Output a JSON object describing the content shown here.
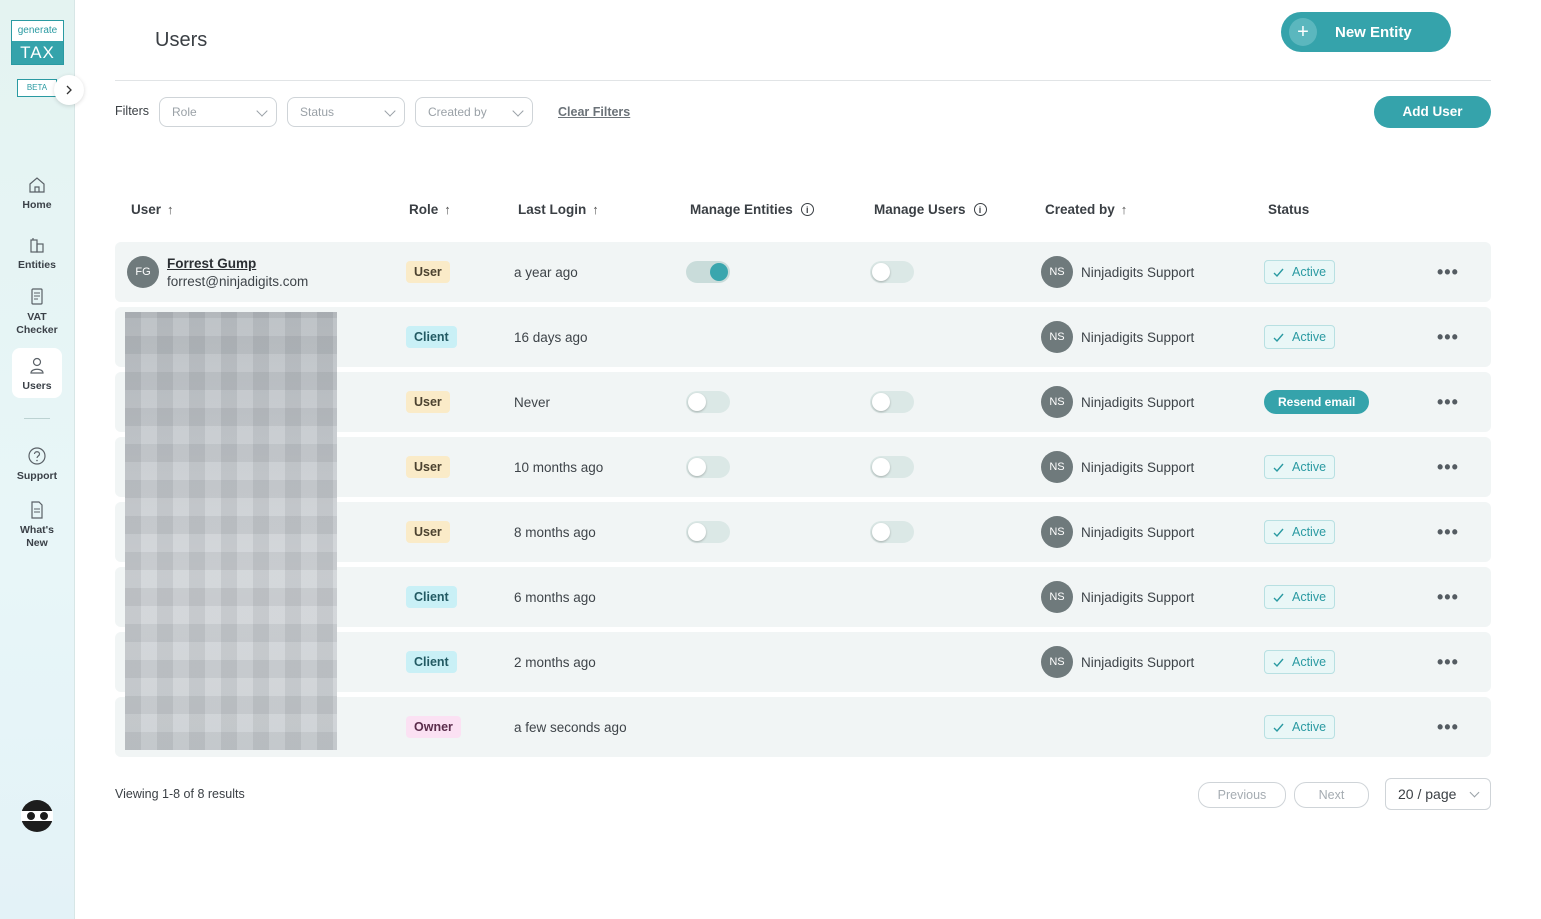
{
  "brand": {
    "logo_top": "generate",
    "logo_bottom": "TAX",
    "beta": "BETA"
  },
  "sidebar": {
    "items": [
      {
        "label": "Home",
        "icon": "home-icon"
      },
      {
        "label": "Entities",
        "icon": "buildings-icon"
      },
      {
        "label": "VAT Checker",
        "icon": "document-icon"
      },
      {
        "label": "Users",
        "icon": "user-icon"
      },
      {
        "label": "Support",
        "icon": "help-icon"
      },
      {
        "label": "What's New",
        "icon": "news-icon"
      }
    ]
  },
  "header": {
    "title": "Users",
    "new_entity_label": "New Entity"
  },
  "filters": {
    "label": "Filters",
    "role_placeholder": "Role",
    "status_placeholder": "Status",
    "created_by_placeholder": "Created by",
    "clear_label": "Clear Filters",
    "add_user_label": "Add User"
  },
  "table": {
    "columns": [
      "User",
      "Role",
      "Last Login",
      "Manage Entities",
      "Manage Users",
      "Created by",
      "Status"
    ],
    "rows": [
      {
        "initials": "FG",
        "name": "Forrest Gump",
        "email": "forrest@ninjadigits.com",
        "role": "User",
        "role_type": "user",
        "last_login": "a year ago",
        "manage_entities": true,
        "manage_users": false,
        "toggles": true,
        "creator_initials": "NS",
        "created_by": "Ninjadigits Support",
        "status": "Active",
        "status_type": "active"
      },
      {
        "initials": "",
        "name": "",
        "email": "",
        "role": "Client",
        "role_type": "client",
        "last_login": "16 days ago",
        "toggles": false,
        "creator_initials": "NS",
        "created_by": "Ninjadigits Support",
        "status": "Active",
        "status_type": "active"
      },
      {
        "initials": "",
        "name": "",
        "email": "",
        "role": "User",
        "role_type": "user",
        "last_login": "Never",
        "manage_entities": false,
        "manage_users": false,
        "toggles": true,
        "creator_initials": "NS",
        "created_by": "Ninjadigits Support",
        "status": "Resend email",
        "status_type": "resend"
      },
      {
        "initials": "",
        "name": "",
        "email": "",
        "role": "User",
        "role_type": "user",
        "last_login": "10 months ago",
        "manage_entities": false,
        "manage_users": false,
        "toggles": true,
        "creator_initials": "NS",
        "created_by": "Ninjadigits Support",
        "status": "Active",
        "status_type": "active"
      },
      {
        "initials": "",
        "name": "",
        "email": "",
        "role": "User",
        "role_type": "user",
        "last_login": "8 months ago",
        "manage_entities": false,
        "manage_users": false,
        "toggles": true,
        "creator_initials": "NS",
        "created_by": "Ninjadigits Support",
        "status": "Active",
        "status_type": "active"
      },
      {
        "initials": "",
        "name": "",
        "email": "",
        "role": "Client",
        "role_type": "client",
        "last_login": "6 months ago",
        "toggles": false,
        "creator_initials": "NS",
        "created_by": "Ninjadigits Support",
        "status": "Active",
        "status_type": "active"
      },
      {
        "initials": "",
        "name": "",
        "email": "",
        "role": "Client",
        "role_type": "client",
        "last_login": "2 months ago",
        "toggles": false,
        "creator_initials": "NS",
        "created_by": "Ninjadigits Support",
        "status": "Active",
        "status_type": "active"
      },
      {
        "initials": "",
        "name": "",
        "email": "",
        "role": "Owner",
        "role_type": "owner",
        "last_login": "a few seconds ago",
        "toggles": false,
        "creator_initials": "",
        "created_by": "",
        "status": "Active",
        "status_type": "active"
      }
    ]
  },
  "pagination": {
    "viewing": "Viewing 1-8 of 8 results",
    "previous": "Previous",
    "next": "Next",
    "per_page": "20 / page"
  },
  "colors": {
    "accent": "#35a3ab"
  }
}
